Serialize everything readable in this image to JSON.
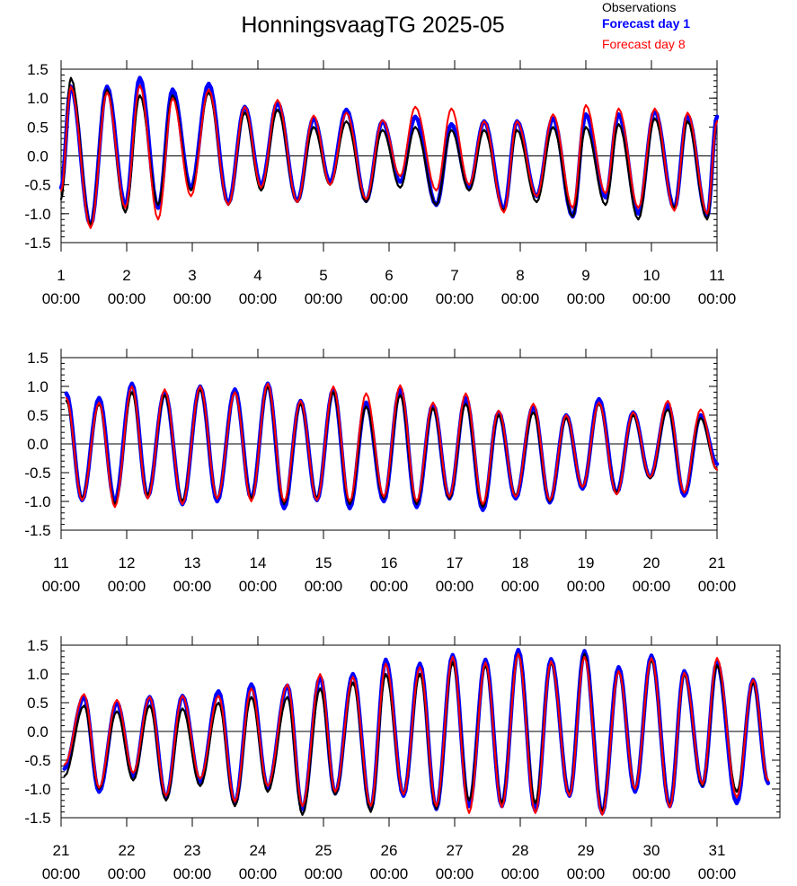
{
  "title": "HonningsvaagTG 2025-05",
  "legend": [
    {
      "label": "Observations",
      "color": "#000000"
    },
    {
      "label": "Forecast day 1",
      "color": "#0000ff"
    },
    {
      "label": "Forecast day 8",
      "color": "#ff0000"
    }
  ],
  "chart_data": [
    {
      "type": "line",
      "x_range_days": [
        1,
        11
      ],
      "ylim": [
        -1.5,
        1.5
      ],
      "y_ticks": [
        "1.5",
        "1.0",
        "0.5",
        "0.0",
        "-0.5",
        "-1.0",
        "-1.5"
      ],
      "x_tick_labels": [
        "1",
        "2",
        "3",
        "4",
        "5",
        "6",
        "7",
        "8",
        "9",
        "10",
        "11"
      ],
      "x_tick_sublabel": "00:00",
      "high_tides": [
        [
          1.15,
          1.35,
          1.2,
          1.2
        ],
        [
          1.7,
          1.15,
          1.2,
          1.1
        ],
        [
          2.2,
          1.05,
          1.35,
          1.22
        ],
        [
          2.7,
          1.05,
          1.15,
          1.0
        ],
        [
          3.25,
          1.1,
          1.25,
          1.15
        ],
        [
          3.8,
          0.75,
          0.85,
          0.85
        ],
        [
          4.3,
          0.8,
          0.92,
          0.97
        ],
        [
          4.85,
          0.5,
          0.65,
          0.7
        ],
        [
          5.35,
          0.6,
          0.8,
          0.75
        ],
        [
          5.9,
          0.45,
          0.6,
          0.62
        ],
        [
          6.4,
          0.5,
          0.68,
          0.85
        ],
        [
          6.95,
          0.45,
          0.55,
          0.82
        ],
        [
          7.45,
          0.45,
          0.6,
          0.6
        ],
        [
          7.95,
          0.45,
          0.6,
          0.6
        ],
        [
          8.5,
          0.5,
          0.65,
          0.72
        ],
        [
          9.0,
          0.5,
          0.72,
          0.88
        ],
        [
          9.5,
          0.55,
          0.72,
          0.82
        ],
        [
          10.05,
          0.65,
          0.78,
          0.82
        ],
        [
          10.55,
          0.6,
          0.7,
          0.75
        ],
        [
          11.0,
          0.6,
          0.68,
          0.6
        ]
      ],
      "low_tides": [
        [
          1.0,
          -0.75,
          -0.55,
          -0.6
        ],
        [
          1.45,
          -1.2,
          -1.2,
          -1.25
        ],
        [
          1.98,
          -0.98,
          -0.85,
          -0.9
        ],
        [
          2.48,
          -0.85,
          -0.9,
          -1.1
        ],
        [
          2.98,
          -0.6,
          -0.55,
          -0.7
        ],
        [
          3.55,
          -0.85,
          -0.82,
          -0.85
        ],
        [
          4.05,
          -0.6,
          -0.5,
          -0.55
        ],
        [
          4.6,
          -0.8,
          -0.78,
          -0.8
        ],
        [
          5.1,
          -0.5,
          -0.45,
          -0.5
        ],
        [
          5.65,
          -0.8,
          -0.78,
          -0.75
        ],
        [
          6.17,
          -0.55,
          -0.45,
          -0.35
        ],
        [
          6.72,
          -0.85,
          -0.85,
          -0.6
        ],
        [
          7.22,
          -0.6,
          -0.55,
          -0.5
        ],
        [
          7.75,
          -0.95,
          -0.92,
          -0.98
        ],
        [
          8.25,
          -0.8,
          -0.7,
          -0.7
        ],
        [
          8.8,
          -1.05,
          -1.05,
          -0.9
        ],
        [
          9.3,
          -0.85,
          -0.72,
          -0.65
        ],
        [
          9.8,
          -1.1,
          -1.0,
          -0.9
        ],
        [
          10.35,
          -0.9,
          -0.9,
          -0.95
        ],
        [
          10.85,
          -1.1,
          -1.05,
          -1.0
        ]
      ]
    },
    {
      "type": "line",
      "x_range_days": [
        11,
        21
      ],
      "ylim": [
        -1.5,
        1.5
      ],
      "y_ticks": [
        "1.5",
        "1.0",
        "0.5",
        "0.0",
        "-0.5",
        "-1.0",
        "-1.5"
      ],
      "x_tick_labels": [
        "11",
        "12",
        "13",
        "14",
        "15",
        "16",
        "17",
        "18",
        "19",
        "20",
        "21"
      ],
      "x_tick_sublabel": "00:00",
      "high_tides": [
        [
          11.08,
          0.75,
          0.88,
          0.8
        ],
        [
          11.58,
          0.7,
          0.8,
          0.72
        ],
        [
          12.08,
          0.9,
          1.05,
          1.0
        ],
        [
          12.58,
          0.85,
          0.9,
          0.95
        ],
        [
          13.12,
          0.95,
          1.0,
          1.0
        ],
        [
          13.65,
          0.9,
          0.95,
          0.9
        ],
        [
          14.15,
          1.0,
          1.05,
          1.05
        ],
        [
          14.65,
          0.7,
          0.75,
          0.75
        ],
        [
          15.15,
          0.9,
          0.95,
          1.0
        ],
        [
          15.65,
          0.65,
          0.72,
          0.88
        ],
        [
          16.17,
          0.85,
          0.95,
          1.02
        ],
        [
          16.67,
          0.62,
          0.68,
          0.72
        ],
        [
          17.17,
          0.7,
          0.8,
          0.88
        ],
        [
          17.67,
          0.5,
          0.55,
          0.58
        ],
        [
          18.2,
          0.55,
          0.65,
          0.7
        ],
        [
          18.7,
          0.45,
          0.5,
          0.5
        ],
        [
          19.2,
          0.7,
          0.78,
          0.72
        ],
        [
          19.72,
          0.5,
          0.55,
          0.55
        ],
        [
          20.25,
          0.6,
          0.68,
          0.75
        ],
        [
          20.75,
          0.45,
          0.5,
          0.6
        ]
      ],
      "low_tides": [
        [
          11.32,
          -0.95,
          -0.98,
          -0.98
        ],
        [
          11.82,
          -1.05,
          -1.0,
          -1.1
        ],
        [
          12.32,
          -0.9,
          -0.92,
          -0.95
        ],
        [
          12.85,
          -1.0,
          -1.05,
          -1.05
        ],
        [
          13.38,
          -0.95,
          -1.0,
          -0.95
        ],
        [
          13.9,
          -0.95,
          -0.95,
          -1.0
        ],
        [
          14.4,
          -1.05,
          -1.12,
          -1.0
        ],
        [
          14.9,
          -0.95,
          -0.98,
          -0.98
        ],
        [
          15.4,
          -1.05,
          -1.12,
          -1.0
        ],
        [
          15.92,
          -0.95,
          -1.0,
          -0.92
        ],
        [
          16.42,
          -1.05,
          -1.1,
          -1.0
        ],
        [
          16.92,
          -0.95,
          -0.95,
          -0.92
        ],
        [
          17.43,
          -1.1,
          -1.15,
          -1.05
        ],
        [
          17.93,
          -0.9,
          -0.95,
          -0.92
        ],
        [
          18.45,
          -1.0,
          -1.02,
          -0.98
        ],
        [
          18.95,
          -0.75,
          -0.78,
          -0.75
        ],
        [
          19.47,
          -0.85,
          -0.85,
          -0.88
        ],
        [
          19.98,
          -0.6,
          -0.58,
          -0.58
        ],
        [
          20.5,
          -0.85,
          -0.9,
          -0.85
        ],
        [
          21.0,
          -0.45,
          -0.35,
          -0.45
        ]
      ]
    },
    {
      "type": "line",
      "x_range_days": [
        21,
        32
      ],
      "ylim": [
        -1.5,
        1.5
      ],
      "y_ticks": [
        "1.5",
        "1.0",
        "0.5",
        "0.0",
        "-0.5",
        "-1.0",
        "-1.5"
      ],
      "x_tick_labels": [
        "21",
        "22",
        "23",
        "24",
        "25",
        "26",
        "27",
        "28",
        "29",
        "30",
        "31"
      ],
      "x_tick_sublabel": "00:00",
      "high_tides": [
        [
          21.35,
          0.45,
          0.6,
          0.65
        ],
        [
          21.85,
          0.35,
          0.5,
          0.55
        ],
        [
          22.35,
          0.45,
          0.6,
          0.6
        ],
        [
          22.85,
          0.4,
          0.62,
          0.62
        ],
        [
          23.4,
          0.5,
          0.7,
          0.62
        ],
        [
          23.9,
          0.6,
          0.82,
          0.75
        ],
        [
          24.45,
          0.6,
          0.8,
          0.82
        ],
        [
          24.95,
          0.75,
          0.95,
          1.0
        ],
        [
          25.45,
          0.85,
          1.0,
          0.95
        ],
        [
          25.95,
          1.0,
          1.25,
          1.18
        ],
        [
          26.47,
          1.0,
          1.18,
          1.12
        ],
        [
          26.97,
          1.2,
          1.33,
          1.3
        ],
        [
          27.47,
          1.15,
          1.25,
          1.2
        ],
        [
          27.97,
          1.35,
          1.42,
          1.35
        ],
        [
          28.47,
          1.2,
          1.26,
          1.22
        ],
        [
          28.98,
          1.35,
          1.4,
          1.3
        ],
        [
          29.5,
          1.05,
          1.12,
          1.05
        ],
        [
          30.0,
          1.25,
          1.32,
          1.28
        ],
        [
          30.5,
          1.0,
          1.05,
          1.02
        ],
        [
          31.0,
          1.15,
          1.2,
          1.28
        ],
        [
          31.55,
          0.85,
          0.9,
          0.9
        ]
      ],
      "low_tides": [
        [
          21.05,
          -0.78,
          -0.65,
          -0.58
        ],
        [
          21.58,
          -1.0,
          -1.05,
          -0.98
        ],
        [
          22.1,
          -0.85,
          -0.78,
          -0.72
        ],
        [
          22.6,
          -1.2,
          -1.15,
          -1.12
        ],
        [
          23.12,
          -0.95,
          -0.88,
          -0.82
        ],
        [
          23.65,
          -1.3,
          -1.25,
          -1.22
        ],
        [
          24.15,
          -1.05,
          -0.98,
          -0.95
        ],
        [
          24.68,
          -1.45,
          -1.35,
          -1.3
        ],
        [
          25.18,
          -1.1,
          -1.08,
          -1.05
        ],
        [
          25.72,
          -1.4,
          -1.35,
          -1.3
        ],
        [
          26.22,
          -1.1,
          -1.12,
          -1.1
        ],
        [
          26.72,
          -1.35,
          -1.35,
          -1.3
        ],
        [
          27.22,
          -1.2,
          -1.3,
          -1.42
        ],
        [
          27.72,
          -1.25,
          -1.3,
          -1.32
        ],
        [
          28.23,
          -1.25,
          -1.38,
          -1.42
        ],
        [
          28.75,
          -1.1,
          -1.12,
          -1.12
        ],
        [
          29.25,
          -1.4,
          -1.42,
          -1.45
        ],
        [
          29.75,
          -1.0,
          -1.05,
          -1.0
        ],
        [
          30.28,
          -1.3,
          -1.3,
          -1.32
        ],
        [
          30.78,
          -0.95,
          -0.95,
          -0.92
        ],
        [
          31.3,
          -1.05,
          -1.25,
          -1.15
        ],
        [
          31.78,
          -0.85,
          -0.9,
          -0.85
        ]
      ]
    }
  ]
}
